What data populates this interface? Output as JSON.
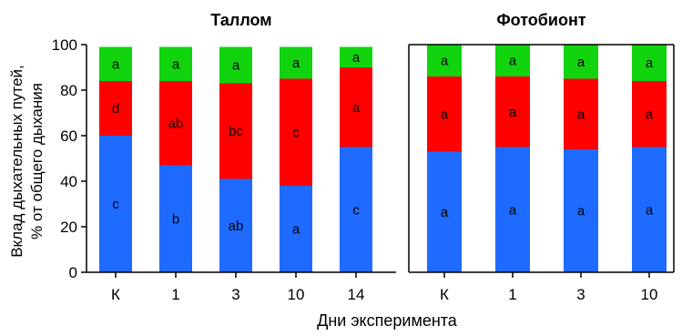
{
  "figure": {
    "ylabel": "Вклад дыхательных путей,\n% от общего дыхания",
    "xlabel": "Дни эксперимента"
  },
  "colors": {
    "blue": "#1f6bff",
    "red": "#ff0000",
    "green": "#11d40f",
    "axis": "#000000"
  },
  "chart_data": [
    {
      "type": "bar",
      "stacked": true,
      "title": "Таллом",
      "categories": [
        "К",
        "1",
        "3",
        "10",
        "14"
      ],
      "ylim": [
        0,
        100
      ],
      "yticks": [
        0,
        20,
        40,
        60,
        80,
        100
      ],
      "series": [
        {
          "color": "blue",
          "values": [
            60,
            47,
            41,
            38,
            55
          ],
          "labels": [
            "c",
            "b",
            "ab",
            "a",
            "c"
          ]
        },
        {
          "color": "red",
          "values": [
            24,
            37,
            42,
            47,
            35
          ],
          "labels": [
            "d",
            "ab",
            "bc",
            "c",
            "a"
          ]
        },
        {
          "color": "green",
          "values": [
            15,
            15,
            16,
            14,
            9
          ],
          "labels": [
            "a",
            "a",
            "a",
            "a",
            "a"
          ]
        }
      ]
    },
    {
      "type": "bar",
      "stacked": true,
      "title": "Фотобионт",
      "categories": [
        "К",
        "1",
        "3",
        "10"
      ],
      "ylim": [
        0,
        100
      ],
      "yticks": [
        0,
        20,
        40,
        60,
        80,
        100
      ],
      "series": [
        {
          "color": "blue",
          "values": [
            53,
            55,
            54,
            55
          ],
          "labels": [
            "a",
            "a",
            "a",
            "a"
          ]
        },
        {
          "color": "red",
          "values": [
            33,
            31,
            31,
            29
          ],
          "labels": [
            "a",
            "a",
            "a",
            "a"
          ]
        },
        {
          "color": "green",
          "values": [
            14,
            14,
            15,
            16
          ],
          "labels": [
            "a",
            "a",
            "a",
            "a"
          ]
        }
      ]
    }
  ]
}
